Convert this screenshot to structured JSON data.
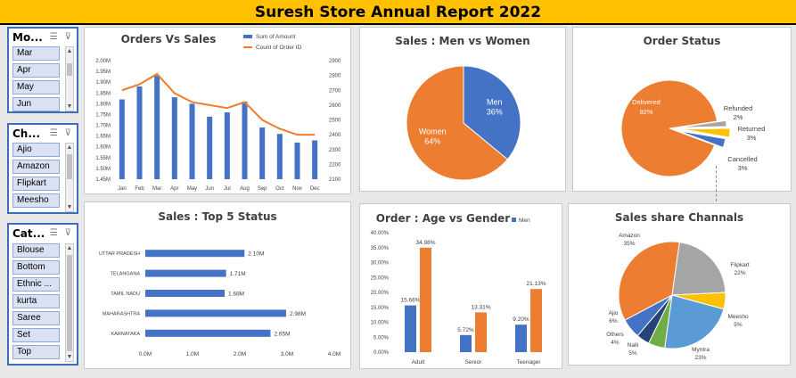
{
  "banner": {
    "title": "Suresh Store  Annual Report 2022"
  },
  "slicers": [
    {
      "title": "Mo...",
      "items": [
        "Mar",
        "Apr",
        "May",
        "Jun"
      ]
    },
    {
      "title": "Ch...",
      "items": [
        "Ajio",
        "Amazon",
        "Flipkart",
        "Meesho"
      ]
    },
    {
      "title": "Cat...",
      "items": [
        "Blouse",
        "Bottom",
        "Ethnic ...",
        "kurta",
        "Saree",
        "Set",
        "Top"
      ]
    }
  ],
  "icons": {
    "multiselect": "multi-select-icon",
    "clear": "clear-filter-icon"
  },
  "chart_data": [
    {
      "id": "orders_vs_sales",
      "type": "bar",
      "title": "Orders Vs  Sales",
      "categories": [
        "Jan",
        "Feb",
        "Mar",
        "Apr",
        "May",
        "Jun",
        "Jul",
        "Aug",
        "Sep",
        "Oct",
        "Nov",
        "Dec"
      ],
      "series": [
        {
          "name": "Sum of Amount",
          "type": "bar",
          "axis": "left",
          "color": "#4472c4",
          "values": [
            1.82,
            1.88,
            1.93,
            1.83,
            1.8,
            1.74,
            1.76,
            1.81,
            1.69,
            1.66,
            1.62,
            1.63
          ]
        },
        {
          "name": "Count of Order ID",
          "type": "line",
          "axis": "right",
          "color": "#ed7d31",
          "values": [
            2700,
            2740,
            2810,
            2680,
            2620,
            2600,
            2580,
            2620,
            2500,
            2440,
            2400,
            2400
          ]
        }
      ],
      "y_left": {
        "ticks": [
          "1.45M",
          "1.50M",
          "1.55M",
          "1.60M",
          "1.65M",
          "1.70M",
          "1.75M",
          "1.80M",
          "1.85M",
          "1.90M",
          "1.95M",
          "2.00M"
        ],
        "range": [
          1.45,
          2.0
        ]
      },
      "y_right": {
        "ticks": [
          "2100",
          "2200",
          "2300",
          "2400",
          "2500",
          "2600",
          "2700",
          "2800",
          "2900"
        ],
        "range": [
          2100,
          2900
        ]
      },
      "legend": "top-right"
    },
    {
      "id": "men_vs_women",
      "type": "pie",
      "title": "Sales : Men vs Women",
      "slices": [
        {
          "label": "Men",
          "value": 36,
          "text": "36%",
          "color": "#4472c4"
        },
        {
          "label": "Women",
          "value": 64,
          "text": "64%",
          "color": "#ed7d31"
        }
      ]
    },
    {
      "id": "order_status",
      "type": "pie",
      "title": "Order Status",
      "slices": [
        {
          "label": "Delivered",
          "value": 92,
          "text": "92%",
          "color": "#ed7d31"
        },
        {
          "label": "Refunded",
          "value": 2,
          "text": "2%",
          "color": "#a5a5a5"
        },
        {
          "label": "Returned",
          "value": 3,
          "text": "3%",
          "color": "#ffc000"
        },
        {
          "label": "Cancelled",
          "value": 3,
          "text": "3%",
          "color": "#4472c4"
        }
      ]
    },
    {
      "id": "top5_states",
      "type": "bar",
      "orientation": "horizontal",
      "title": "Sales : Top 5 Status",
      "categories": [
        "UTTAR PRADESH",
        "TELANGANA",
        "TAMIL NADU",
        "MAHARASHTRA",
        "KARNATAKA"
      ],
      "values": [
        2.1,
        1.71,
        1.68,
        2.98,
        2.65
      ],
      "value_labels": [
        "2.10M",
        "1.71M",
        "1.68M",
        "2.98M",
        "2.65M"
      ],
      "x_ticks": [
        "0.0M",
        "1.0M",
        "2.0M",
        "3.0M",
        "4.0M"
      ],
      "xlim": [
        0,
        4
      ],
      "color": "#4472c4"
    },
    {
      "id": "age_vs_gender",
      "type": "bar",
      "title": "Order : Age vs Gender",
      "categories": [
        "Adult",
        "Senior",
        "Teenager"
      ],
      "series": [
        {
          "name": "Men",
          "color": "#4472c4",
          "values": [
            15.66,
            5.72,
            9.2
          ],
          "labels": [
            "15.66%",
            "5.72%",
            "9.20%"
          ]
        },
        {
          "name": "",
          "color": "#ed7d31",
          "values": [
            34.98,
            13.31,
            21.13
          ],
          "labels": [
            "34.98%",
            "13.31%",
            "21.13%"
          ]
        }
      ],
      "y_ticks": [
        "0.00%",
        "5.00%",
        "10.00%",
        "15.00%",
        "20.00%",
        "25.00%",
        "30.00%",
        "35.00%",
        "40.00%"
      ],
      "ylim": [
        0,
        40
      ],
      "legend": "top-right"
    },
    {
      "id": "channels",
      "type": "pie",
      "title": "Sales share Channals",
      "slices": [
        {
          "label": "Amazon",
          "value": 35,
          "text": "35%",
          "color": "#ed7d31"
        },
        {
          "label": "Flipkart",
          "value": 22,
          "text": "22%",
          "color": "#a5a5a5"
        },
        {
          "label": "Meesho",
          "value": 5,
          "text": "5%",
          "color": "#ffc000"
        },
        {
          "label": "Myntra",
          "value": 23,
          "text": "23%",
          "color": "#5b9bd5"
        },
        {
          "label": "Nalli",
          "value": 5,
          "text": "5%",
          "color": "#70ad47"
        },
        {
          "label": "Others",
          "value": 4,
          "text": "4%",
          "color": "#264478"
        },
        {
          "label": "Ajio",
          "value": 6,
          "text": "6%",
          "color": "#4472c4"
        }
      ]
    }
  ]
}
